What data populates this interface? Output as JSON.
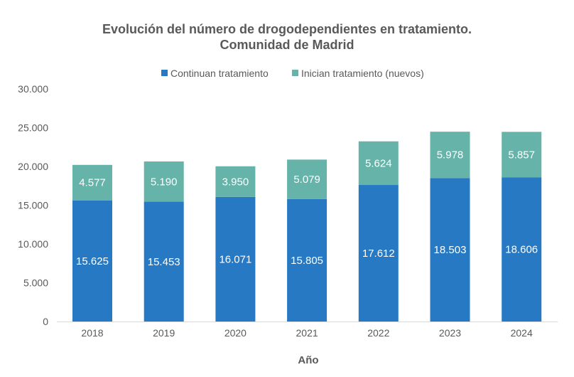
{
  "chart_data": {
    "type": "bar",
    "stacked": true,
    "title": "Evolución del número de drogodependientes en tratamiento.",
    "subtitle": "Comunidad de Madrid",
    "xlabel": "Año",
    "ylabel": "",
    "ylim": [
      0,
      30000
    ],
    "yticks": [
      "0",
      "5.000",
      "10.000",
      "15.000",
      "20.000",
      "25.000",
      "30.000"
    ],
    "grid": false,
    "legend_position": "top",
    "categories": [
      "2018",
      "2019",
      "2020",
      "2021",
      "2022",
      "2023",
      "2024"
    ],
    "series": [
      {
        "name": "Continuan tratamiento",
        "color": "#2779C4",
        "values": [
          15625,
          15453,
          16071,
          15805,
          17612,
          18503,
          18606
        ],
        "labels": [
          "15.625",
          "15.453",
          "16.071",
          "15.805",
          "17.612",
          "18.503",
          "18.606"
        ]
      },
      {
        "name": "Inician tratamiento (nuevos)",
        "color": "#66B3A9",
        "values": [
          4577,
          5190,
          3950,
          5079,
          5624,
          5978,
          5857
        ],
        "labels": [
          "4.577",
          "5.190",
          "3.950",
          "5.079",
          "5.624",
          "5.978",
          "5.857"
        ]
      }
    ]
  }
}
